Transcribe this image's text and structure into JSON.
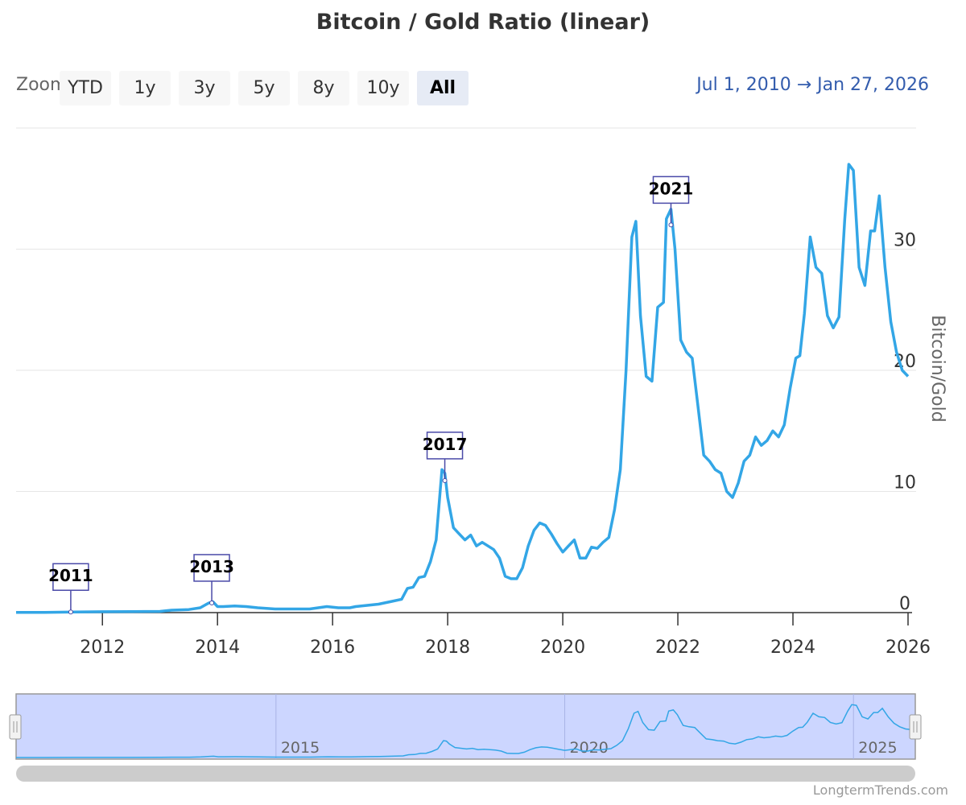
{
  "chart_data": {
    "type": "line",
    "title": "Bitcoin / Gold Ratio (linear)",
    "ylabel": "Bitcoin/Gold",
    "xlabel": "",
    "xlim": [
      2010.5,
      2026.07
    ],
    "ylim": [
      0,
      40
    ],
    "y_ticks": [
      0,
      10,
      20,
      30
    ],
    "x_ticks": [
      2012,
      2014,
      2016,
      2018,
      2020,
      2022,
      2024,
      2026
    ],
    "grid": "horizontal",
    "series": [
      {
        "name": "",
        "color": "#33a6e6",
        "x": [
          2010.5,
          2011.0,
          2011.5,
          2012.0,
          2012.5,
          2013.0,
          2013.2,
          2013.5,
          2013.7,
          2013.85,
          2013.92,
          2014.0,
          2014.1,
          2014.3,
          2014.5,
          2014.7,
          2015.0,
          2015.3,
          2015.6,
          2015.9,
          2016.1,
          2016.3,
          2016.4,
          2016.6,
          2016.8,
          2017.0,
          2017.2,
          2017.3,
          2017.4,
          2017.5,
          2017.6,
          2017.7,
          2017.8,
          2017.9,
          2017.95,
          2018.0,
          2018.1,
          2018.2,
          2018.3,
          2018.4,
          2018.5,
          2018.6,
          2018.7,
          2018.8,
          2018.9,
          2019.0,
          2019.1,
          2019.2,
          2019.3,
          2019.4,
          2019.5,
          2019.6,
          2019.7,
          2019.8,
          2019.9,
          2020.0,
          2020.1,
          2020.2,
          2020.3,
          2020.4,
          2020.5,
          2020.6,
          2020.7,
          2020.8,
          2020.9,
          2021.0,
          2021.1,
          2021.2,
          2021.27,
          2021.35,
          2021.45,
          2021.55,
          2021.65,
          2021.75,
          2021.8,
          2021.88,
          2021.95,
          2022.05,
          2022.15,
          2022.25,
          2022.35,
          2022.45,
          2022.55,
          2022.65,
          2022.75,
          2022.85,
          2022.95,
          2023.05,
          2023.15,
          2023.25,
          2023.35,
          2023.45,
          2023.55,
          2023.65,
          2023.75,
          2023.85,
          2023.95,
          2024.05,
          2024.12,
          2024.2,
          2024.3,
          2024.4,
          2024.5,
          2024.6,
          2024.7,
          2024.8,
          2024.9,
          2024.97,
          2025.05,
          2025.15,
          2025.25,
          2025.35,
          2025.42,
          2025.5,
          2025.6,
          2025.7,
          2025.8,
          2025.9,
          2026.0
        ],
        "values": [
          0.01,
          0.02,
          0.05,
          0.07,
          0.08,
          0.1,
          0.2,
          0.25,
          0.4,
          0.8,
          0.9,
          0.5,
          0.5,
          0.55,
          0.5,
          0.4,
          0.3,
          0.3,
          0.3,
          0.5,
          0.4,
          0.4,
          0.5,
          0.6,
          0.7,
          0.9,
          1.1,
          2.0,
          2.1,
          2.9,
          3.0,
          4.2,
          6.0,
          11.8,
          11.5,
          9.5,
          7.0,
          6.5,
          6.0,
          6.4,
          5.5,
          5.8,
          5.5,
          5.2,
          4.5,
          3.0,
          2.8,
          2.8,
          3.7,
          5.5,
          6.8,
          7.4,
          7.2,
          6.5,
          5.7,
          5.0,
          5.5,
          6.0,
          4.5,
          4.5,
          5.4,
          5.3,
          5.8,
          6.2,
          8.5,
          11.8,
          20.0,
          31.0,
          32.3,
          24.5,
          19.5,
          19.1,
          25.2,
          25.6,
          32.5,
          33.3,
          30.0,
          22.5,
          21.5,
          21.0,
          17.0,
          13.0,
          12.5,
          11.8,
          11.5,
          10.0,
          9.5,
          10.7,
          12.5,
          13.0,
          14.5,
          13.8,
          14.2,
          15.0,
          14.5,
          15.5,
          18.5,
          21.0,
          21.2,
          24.7,
          31.0,
          28.5,
          28.0,
          24.5,
          23.5,
          24.4,
          32.5,
          37.0,
          36.5,
          28.5,
          27.0,
          31.5,
          31.5,
          34.4,
          28.5,
          24.0,
          21.5,
          20.0,
          19.5
        ]
      }
    ],
    "annotations": [
      {
        "label": "2011",
        "x": 2011.45,
        "y": 0.05
      },
      {
        "label": "2013",
        "x": 2013.9,
        "y": 0.8
      },
      {
        "label": "2017",
        "x": 2017.95,
        "y": 10.9
      },
      {
        "label": "2021",
        "x": 2021.88,
        "y": 32.0
      }
    ],
    "navigator": {
      "x_ticks": [
        2015,
        2020,
        2025
      ]
    }
  },
  "ui": {
    "zoom_label": "Zoom",
    "buttons": [
      "YTD",
      "1y",
      "3y",
      "5y",
      "8y",
      "10y",
      "All"
    ],
    "active_button": "All",
    "range_text": "Jul 1, 2010 → Jan 27, 2026",
    "credit": "LongtermTrends.com"
  },
  "colors": {
    "line": "#33a6e6",
    "annotation": "#4a4aa8",
    "navigator_fill": "#ccd6ff",
    "range_text": "#335cad"
  }
}
